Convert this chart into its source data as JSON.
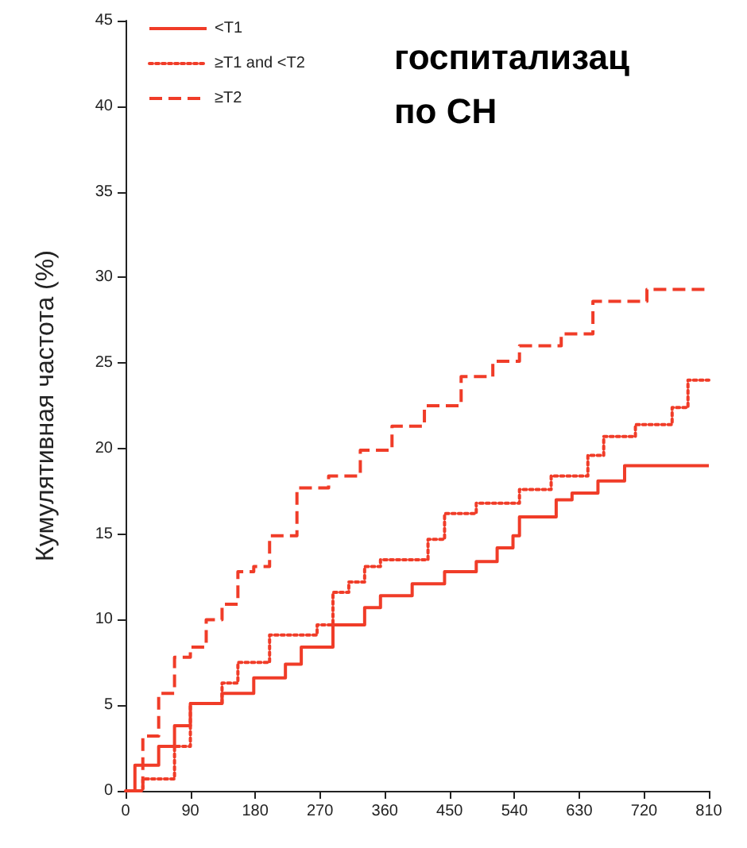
{
  "chart_data": {
    "type": "step",
    "title": "госпитализац\nпо СН",
    "ylabel": "Кумулятивная частота (%)",
    "xlim": [
      0,
      810
    ],
    "xticks": [
      0,
      90,
      180,
      270,
      360,
      450,
      540,
      630,
      720,
      810
    ],
    "ylim": [
      0,
      45
    ],
    "yticks": [
      0,
      5,
      10,
      15,
      20,
      25,
      30,
      35,
      40,
      45
    ],
    "grid": false,
    "legend": "top left",
    "marker": "none",
    "series": [
      {
        "name": "<T1",
        "color": "#f03c28",
        "line_style": "solid",
        "x": [
          0,
          13,
          46,
          68,
          90,
          134,
          178,
          222,
          244,
          288,
          332,
          354,
          398,
          443,
          487,
          516,
          538,
          547,
          598,
          620,
          656,
          693,
          810
        ],
        "values": [
          0,
          1.5,
          2.6,
          3.8,
          5.1,
          5.7,
          6.6,
          7.4,
          8.4,
          9.7,
          10.7,
          11.4,
          12.1,
          12.8,
          13.4,
          14.2,
          14.9,
          16.0,
          17.0,
          17.4,
          18.1,
          19.0,
          19.0
        ]
      },
      {
        "name": "≥T1 and <T2",
        "color": "#f03c28",
        "line_style": "dotted",
        "x": [
          0,
          24,
          68,
          90,
          134,
          156,
          200,
          266,
          288,
          310,
          332,
          354,
          420,
          443,
          487,
          547,
          591,
          642,
          664,
          708,
          759,
          781,
          810
        ],
        "values": [
          0,
          0.7,
          2.6,
          5.1,
          6.3,
          7.5,
          9.1,
          9.7,
          11.6,
          12.2,
          13.1,
          13.5,
          14.7,
          16.2,
          16.8,
          17.6,
          18.4,
          19.6,
          20.7,
          21.4,
          22.4,
          24.0,
          24.0
        ]
      },
      {
        "name": "≥T2",
        "color": "#f03c28",
        "line_style": "dashed",
        "x": [
          0,
          24,
          46,
          68,
          90,
          112,
          134,
          156,
          178,
          200,
          238,
          282,
          326,
          370,
          415,
          466,
          510,
          547,
          605,
          649,
          724,
          810
        ],
        "values": [
          0,
          3.2,
          5.7,
          7.8,
          8.4,
          10.0,
          10.9,
          12.8,
          13.1,
          14.9,
          17.7,
          18.4,
          19.9,
          21.3,
          22.5,
          24.2,
          25.1,
          26.0,
          26.7,
          28.6,
          29.3,
          29.3
        ]
      }
    ]
  }
}
